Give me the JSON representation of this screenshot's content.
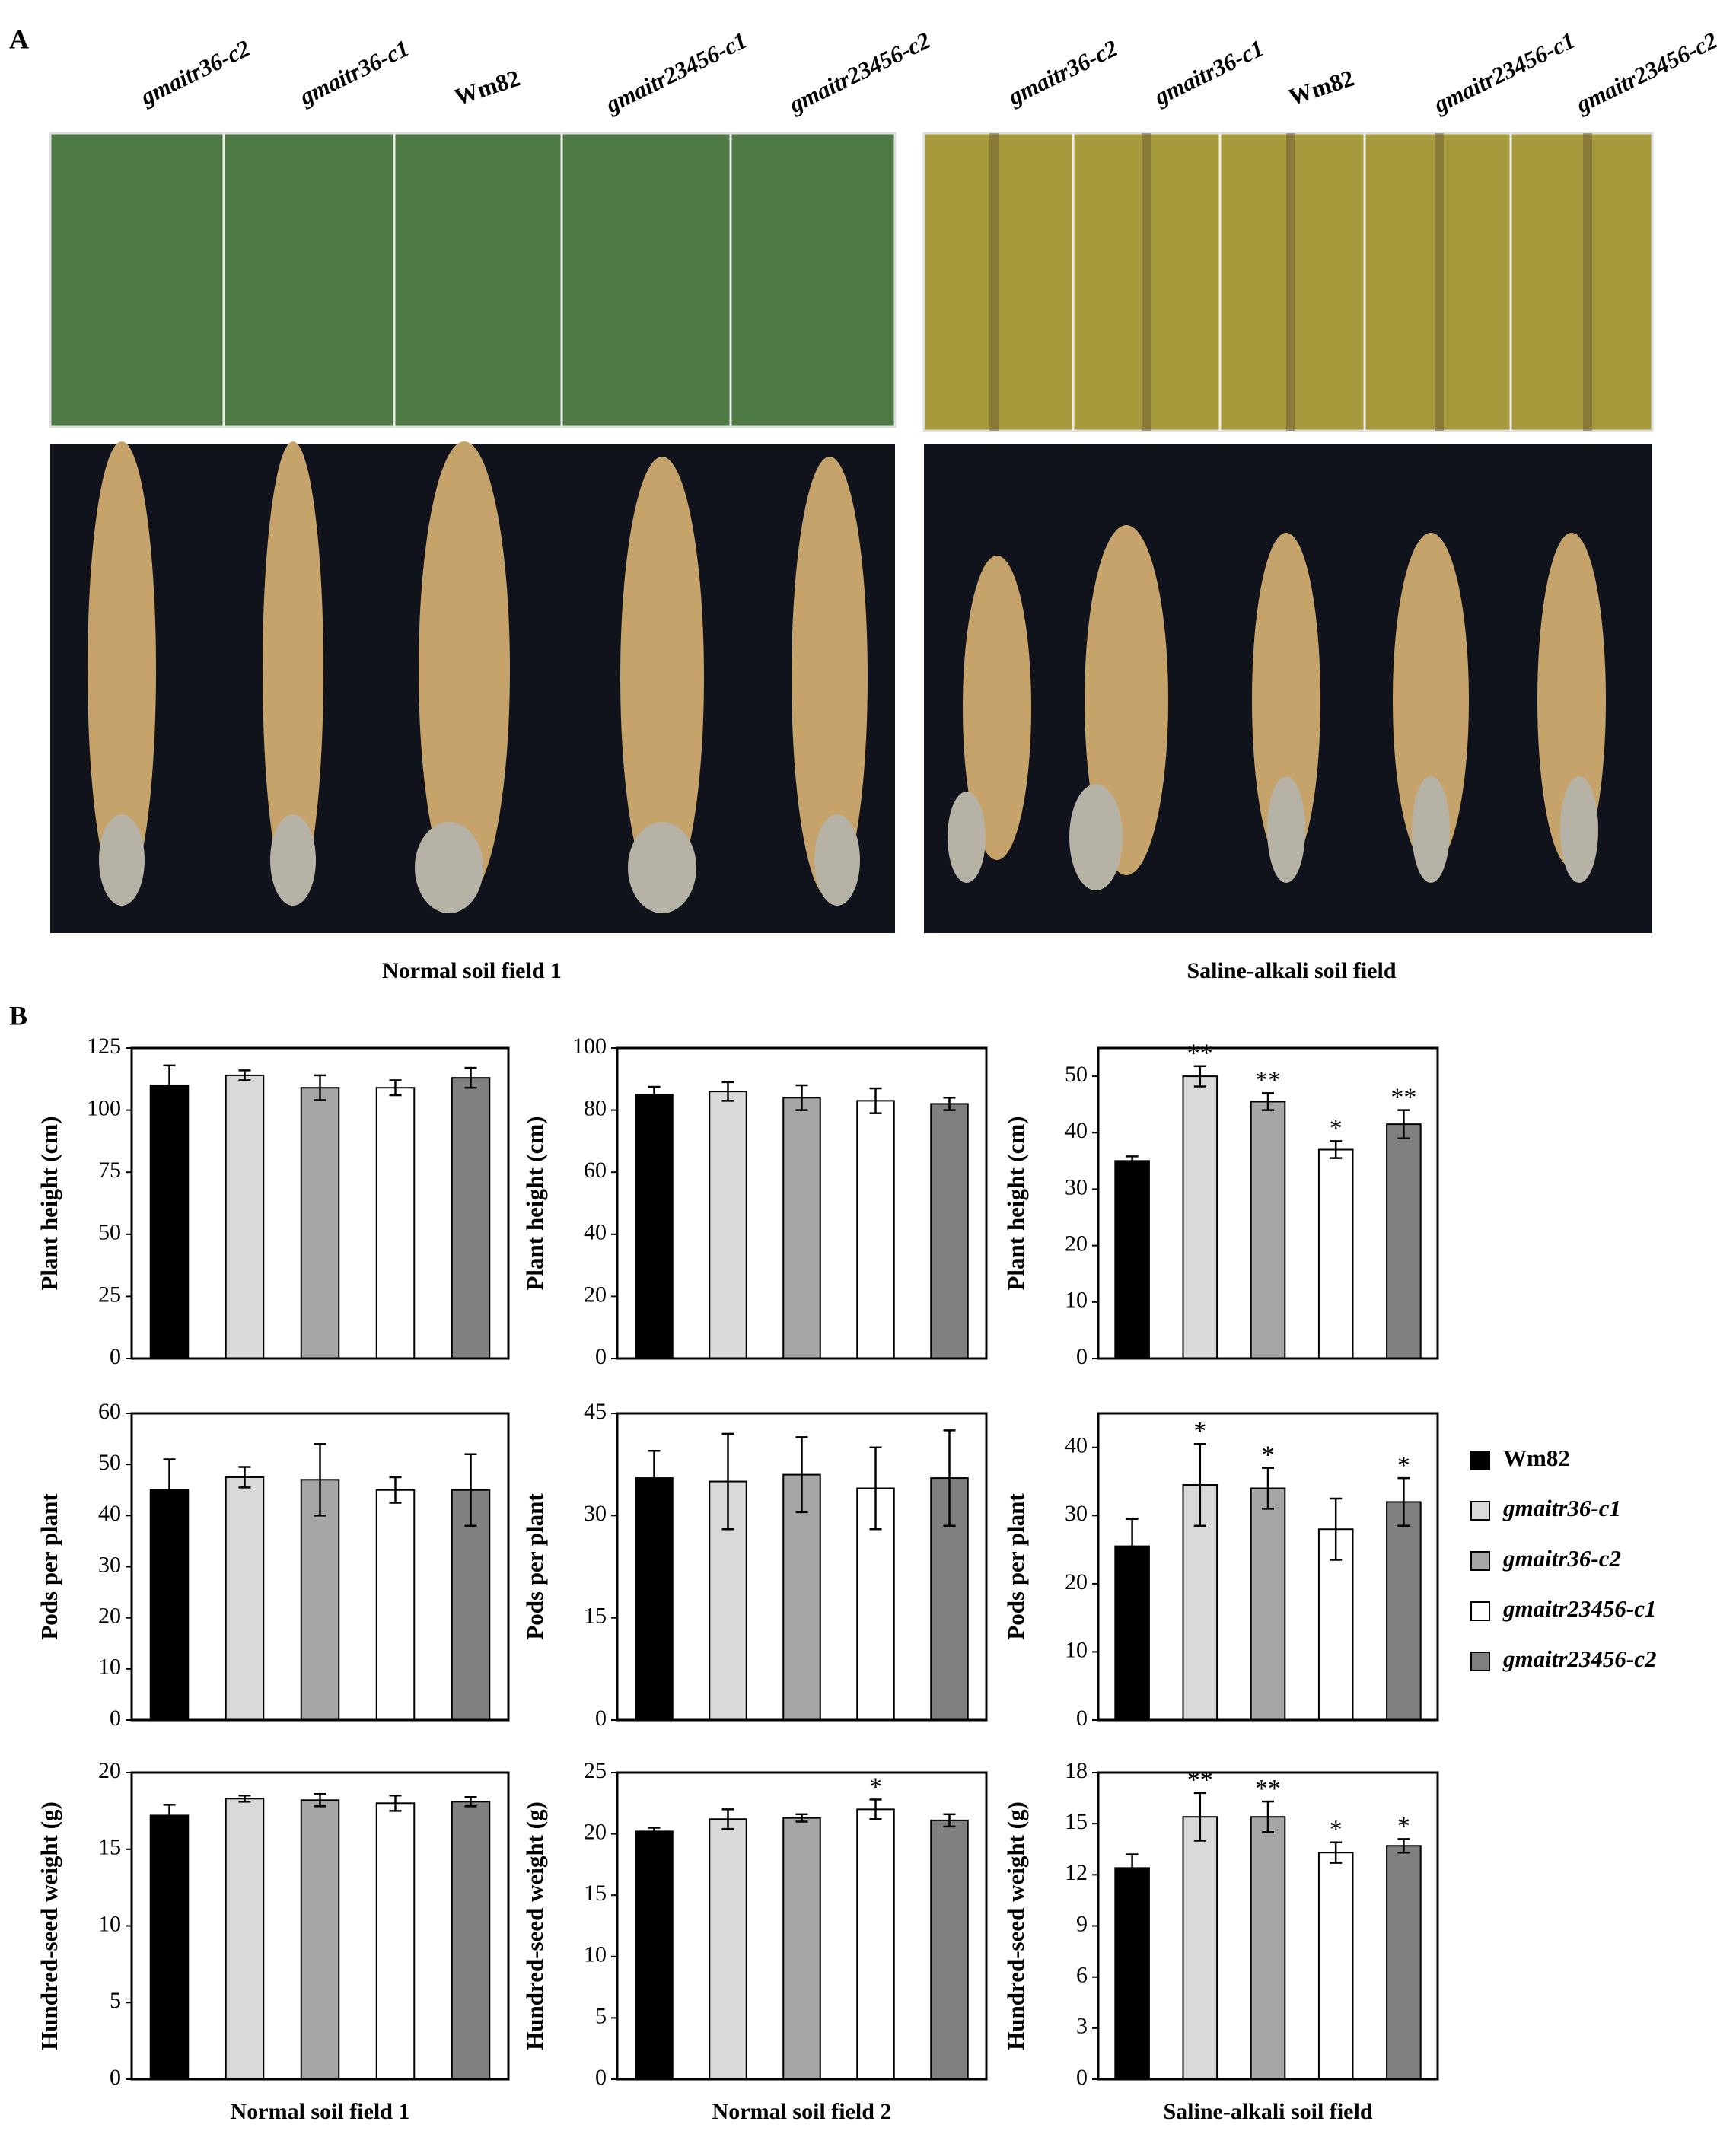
{
  "panel_labels": [
    "A",
    "B"
  ],
  "photos": {
    "left_labels": [
      "gmaitr36-c2",
      "gmaitr36-c1",
      "Wm82",
      "gmaitr23456-c1",
      "gmaitr23456-c2"
    ],
    "right_labels": [
      "gmaitr36-c2",
      "gmaitr36-c1",
      "Wm82",
      "gmaitr23456-c1",
      "gmaitr23456-c2"
    ],
    "left_caption": "Normal soil field 1",
    "right_caption": "Saline-alkali soil field"
  },
  "legend": [
    {
      "name": "Wm82",
      "color": "#000000"
    },
    {
      "name": "gmaitr36-c1",
      "color": "#d9d9d9"
    },
    {
      "name": "gmaitr36-c2",
      "color": "#a6a6a6"
    },
    {
      "name": "gmaitr23456-c1",
      "color": "#ffffff"
    },
    {
      "name": "gmaitr23456-c2",
      "color": "#808080"
    }
  ],
  "chart_data": [
    {
      "type": "bar",
      "ylabel": "Plant height (cm)",
      "ylim": [
        0,
        125
      ],
      "yticks": [
        0,
        25,
        50,
        75,
        100,
        125
      ],
      "values": [
        110,
        114,
        109,
        109,
        113
      ],
      "errors": [
        8,
        2,
        5,
        3,
        4
      ],
      "stars": [
        null,
        null,
        null,
        null,
        null
      ]
    },
    {
      "type": "bar",
      "ylabel": "Plant height (cm)",
      "ylim": [
        0,
        100
      ],
      "yticks": [
        0,
        20,
        40,
        60,
        80,
        100
      ],
      "values": [
        85,
        86,
        84,
        83,
        82
      ],
      "errors": [
        2.5,
        3,
        4,
        4,
        2
      ],
      "stars": [
        null,
        null,
        null,
        null,
        null
      ]
    },
    {
      "type": "bar",
      "ylabel": "Plant height (cm)",
      "ylim": [
        0,
        55
      ],
      "yticks": [
        0,
        10,
        20,
        30,
        40,
        50
      ],
      "values": [
        35,
        50,
        45.5,
        37,
        41.5
      ],
      "errors": [
        0.8,
        1.8,
        1.5,
        1.5,
        2.5
      ],
      "stars": [
        null,
        "**",
        "**",
        "*",
        "**"
      ]
    },
    {
      "type": "bar",
      "ylabel": "Pods per plant",
      "ylim": [
        0,
        60
      ],
      "yticks": [
        0,
        10,
        20,
        30,
        40,
        50,
        60
      ],
      "values": [
        45,
        47.5,
        47,
        45,
        45
      ],
      "errors": [
        6,
        2,
        7,
        2.5,
        7
      ],
      "stars": [
        null,
        null,
        null,
        null,
        null
      ]
    },
    {
      "type": "bar",
      "ylabel": "Pods per plant",
      "ylim": [
        0,
        45
      ],
      "yticks": [
        0,
        15,
        30,
        45
      ],
      "values": [
        35.5,
        35,
        36,
        34,
        35.5
      ],
      "errors": [
        4,
        7,
        5.5,
        6,
        7
      ],
      "stars": [
        null,
        null,
        null,
        null,
        null
      ]
    },
    {
      "type": "bar",
      "ylabel": "Pods per plant",
      "ylim": [
        0,
        45
      ],
      "yticks": [
        0,
        10,
        20,
        30,
        40
      ],
      "values": [
        25.5,
        34.5,
        34,
        28,
        32
      ],
      "errors": [
        4,
        6,
        3,
        4.5,
        3.5
      ],
      "stars": [
        null,
        "*",
        "*",
        null,
        "*"
      ]
    },
    {
      "type": "bar",
      "ylabel": "Hundred-seed weight (g)",
      "xlabel": "Normal soil field 1",
      "ylim": [
        0,
        20
      ],
      "yticks": [
        0,
        5,
        10,
        15,
        20
      ],
      "values": [
        17.2,
        18.3,
        18.2,
        18,
        18.1
      ],
      "errors": [
        0.7,
        0.2,
        0.4,
        0.5,
        0.3
      ],
      "stars": [
        null,
        null,
        null,
        null,
        null
      ]
    },
    {
      "type": "bar",
      "ylabel": "Hundred-seed weight (g)",
      "xlabel": "Normal soil field 2",
      "ylim": [
        0,
        25
      ],
      "yticks": [
        0,
        5,
        10,
        15,
        20,
        25
      ],
      "values": [
        20.2,
        21.2,
        21.3,
        22,
        21.1
      ],
      "errors": [
        0.3,
        0.8,
        0.3,
        0.8,
        0.5
      ],
      "stars": [
        null,
        null,
        null,
        "*",
        null
      ]
    },
    {
      "type": "bar",
      "ylabel": "Hundred-seed weight (g)",
      "xlabel": "Saline-alkali soil field",
      "ylim": [
        0,
        18
      ],
      "yticks": [
        0,
        3,
        6,
        9,
        12,
        15,
        18
      ],
      "values": [
        12.4,
        15.4,
        15.4,
        13.3,
        13.7
      ],
      "errors": [
        0.8,
        1.4,
        0.9,
        0.6,
        0.4
      ],
      "stars": [
        null,
        "**",
        "**",
        "*",
        "*"
      ]
    }
  ]
}
